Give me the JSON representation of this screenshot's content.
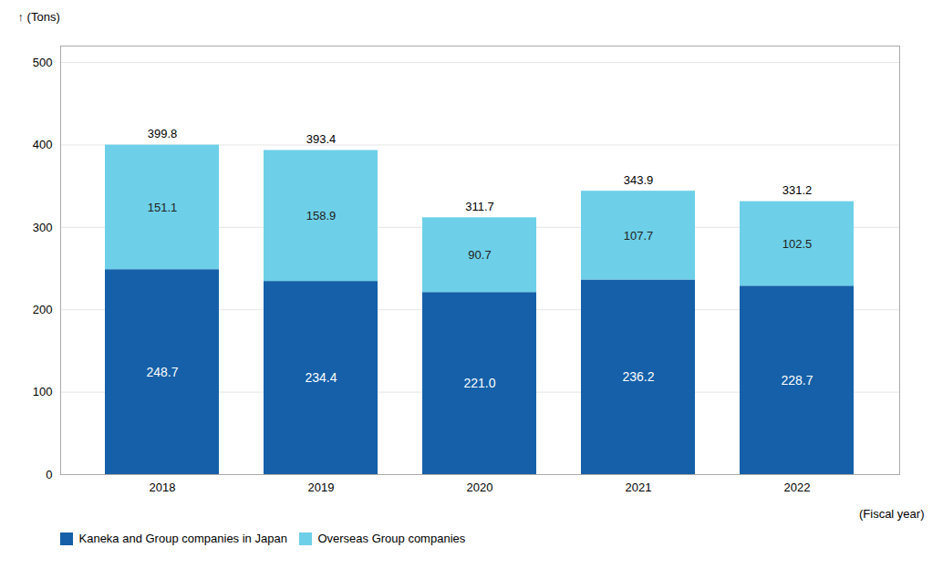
{
  "chart_data": {
    "type": "bar",
    "stacked": true,
    "categories": [
      "2018",
      "2019",
      "2020",
      "2021",
      "2022"
    ],
    "series": [
      {
        "name": "Kaneka and Group companies in Japan",
        "color": "#1560a8",
        "values": [
          248.7,
          234.4,
          221.0,
          236.2,
          228.7
        ],
        "value_labels": [
          "248.7",
          "234.4",
          "221.0",
          "236.2",
          "228.7"
        ]
      },
      {
        "name": "Overseas Group companies",
        "color": "#6dd0e8",
        "values": [
          151.1,
          158.9,
          90.7,
          107.7,
          102.5
        ],
        "value_labels": [
          "151.1",
          "158.9",
          "90.7",
          "107.7",
          "102.5"
        ]
      }
    ],
    "totals": [
      399.8,
      393.4,
      311.7,
      343.9,
      331.2
    ],
    "xlabel": "(Fiscal year)",
    "ylabel": "(Tons)",
    "ylim": [
      0,
      520
    ],
    "yticks": [
      0,
      100,
      200,
      300,
      400,
      500
    ],
    "grid": true,
    "data_labels": true,
    "legend": "lower left"
  }
}
